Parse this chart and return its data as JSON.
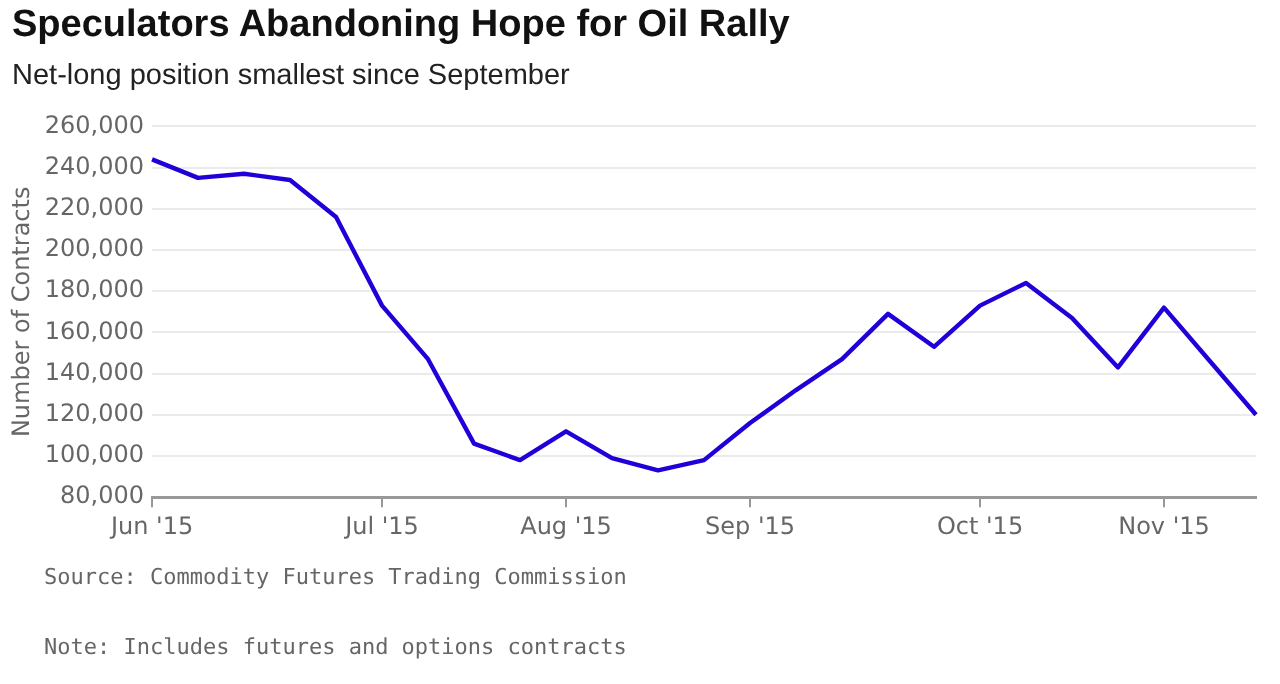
{
  "chart_data": {
    "type": "line",
    "title": "Speculators Abandoning Hope for Oil Rally",
    "subtitle": "Net-long position smallest since September",
    "ylabel": "Number of Contracts",
    "categories": [
      "Jun '15",
      null,
      null,
      null,
      null,
      "Jul '15",
      null,
      null,
      null,
      "Aug '15",
      null,
      null,
      null,
      "Sep '15",
      null,
      null,
      null,
      null,
      "Oct '15",
      null,
      null,
      null,
      "Nov '15",
      null,
      null
    ],
    "series": [
      {
        "color": "#2000d8",
        "values": [
          244000,
          235000,
          237000,
          234000,
          216000,
          173000,
          147000,
          106000,
          98000,
          112000,
          99000,
          93000,
          98000,
          116000,
          132000,
          147000,
          169000,
          153000,
          173000,
          184000,
          167000,
          143000,
          172000,
          146000,
          120000
        ]
      }
    ],
    "ylim": [
      80000,
      260000
    ],
    "yticks": [
      {
        "value": 80000,
        "label": "80,000"
      },
      {
        "value": 100000,
        "label": "100,000"
      },
      {
        "value": 120000,
        "label": "120,000"
      },
      {
        "value": 140000,
        "label": "140,000"
      },
      {
        "value": 160000,
        "label": "160,000"
      },
      {
        "value": 180000,
        "label": "180,000"
      },
      {
        "value": 200000,
        "label": "200,000"
      },
      {
        "value": 220000,
        "label": "220,000"
      },
      {
        "value": 240000,
        "label": "240,000"
      },
      {
        "value": 260000,
        "label": "260,000"
      }
    ],
    "grid": "y",
    "legend": false,
    "marker": "none",
    "line_style": "solid",
    "annotations": [
      "Source: Commodity Futures Trading Commission",
      "Note: Includes futures and options contracts"
    ]
  }
}
